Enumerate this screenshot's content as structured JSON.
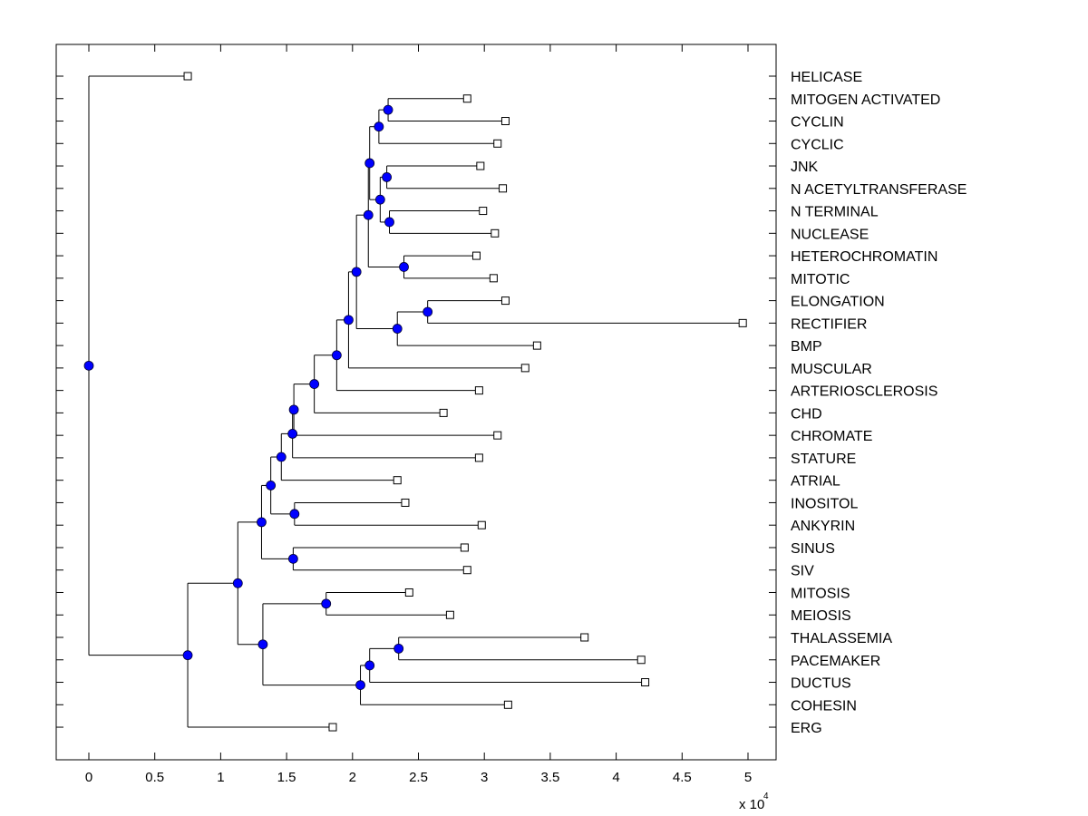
{
  "chart_data": {
    "type": "dendrogram",
    "title": "",
    "xlabel": "",
    "ylabel": "",
    "x_multiplier_label": "x 10",
    "x_multiplier_exponent": "4",
    "xlim": [
      -0.25,
      5.2
    ],
    "xticks": [
      0,
      0.5,
      1,
      1.5,
      2,
      2.5,
      3,
      3.5,
      4,
      4.5,
      5
    ],
    "xtick_labels": [
      "0",
      "0.5",
      "1",
      "1.5",
      "2",
      "2.5",
      "3",
      "3.5",
      "4",
      "4.5",
      "5"
    ],
    "grid": false,
    "label_placement": "right",
    "colors": {
      "node_fill": "#0000ff",
      "leaf_fill": "#ffffff",
      "line": "#000000"
    },
    "leaves": [
      {
        "id": "HELICASE",
        "label": "HELICASE",
        "x": 0.75
      },
      {
        "id": "MITOGEN",
        "label": "MITOGEN ACTIVATED",
        "x": 2.87
      },
      {
        "id": "CYCLIN",
        "label": "CYCLIN",
        "x": 3.16
      },
      {
        "id": "CYCLIC",
        "label": "CYCLIC",
        "x": 3.1
      },
      {
        "id": "JNK",
        "label": "JNK",
        "x": 2.97
      },
      {
        "id": "NACETYL",
        "label": "N ACETYLTRANSFERASE",
        "x": 3.14
      },
      {
        "id": "NTERM",
        "label": "N TERMINAL",
        "x": 2.99
      },
      {
        "id": "NUCLEASE",
        "label": "NUCLEASE",
        "x": 3.08
      },
      {
        "id": "HETERO",
        "label": "HETEROCHROMATIN",
        "x": 2.94
      },
      {
        "id": "MITOTIC",
        "label": "MITOTIC",
        "x": 3.07
      },
      {
        "id": "ELONG",
        "label": "ELONGATION",
        "x": 3.16
      },
      {
        "id": "RECT",
        "label": "RECTIFIER",
        "x": 4.96
      },
      {
        "id": "BMP",
        "label": "BMP",
        "x": 3.4
      },
      {
        "id": "MUSCULAR",
        "label": "MUSCULAR",
        "x": 3.31
      },
      {
        "id": "ARTERIO",
        "label": "ARTERIOSCLEROSIS",
        "x": 2.96
      },
      {
        "id": "CHD",
        "label": "CHD",
        "x": 2.69
      },
      {
        "id": "CHROMATE",
        "label": "CHROMATE",
        "x": 3.1
      },
      {
        "id": "STATURE",
        "label": "STATURE",
        "x": 2.96
      },
      {
        "id": "ATRIAL",
        "label": "ATRIAL",
        "x": 2.34
      },
      {
        "id": "INOSITOL",
        "label": "INOSITOL",
        "x": 2.4
      },
      {
        "id": "ANKYRIN",
        "label": "ANKYRIN",
        "x": 2.98
      },
      {
        "id": "SINUS",
        "label": "SINUS",
        "x": 2.85
      },
      {
        "id": "SIV",
        "label": "SIV",
        "x": 2.87
      },
      {
        "id": "MITOSIS",
        "label": "MITOSIS",
        "x": 2.43
      },
      {
        "id": "MEIOSIS",
        "label": "MEIOSIS",
        "x": 2.74
      },
      {
        "id": "THAL",
        "label": "THALASSEMIA",
        "x": 3.76
      },
      {
        "id": "PACE",
        "label": "PACEMAKER",
        "x": 4.19
      },
      {
        "id": "DUCTUS",
        "label": "DUCTUS",
        "x": 4.22
      },
      {
        "id": "COHESIN",
        "label": "COHESIN",
        "x": 3.18
      },
      {
        "id": "ERG",
        "label": "ERG",
        "x": 1.85
      }
    ],
    "nodes": [
      {
        "id": "n_mc",
        "x": 2.27,
        "children": [
          "MITOGEN",
          "CYCLIN"
        ]
      },
      {
        "id": "n_mcc",
        "x": 2.2,
        "children": [
          "n_mc",
          "CYCLIC"
        ]
      },
      {
        "id": "n_jn",
        "x": 2.26,
        "children": [
          "JNK",
          "NACETYL"
        ]
      },
      {
        "id": "n_nn",
        "x": 2.28,
        "children": [
          "NTERM",
          "NUCLEASE"
        ]
      },
      {
        "id": "n_jnnn",
        "x": 2.21,
        "children": [
          "n_jn",
          "n_nn"
        ]
      },
      {
        "id": "n_top",
        "x": 2.13,
        "children": [
          "n_mcc",
          "n_jnnn"
        ]
      },
      {
        "id": "n_hm",
        "x": 2.39,
        "children": [
          "HETERO",
          "MITOTIC"
        ]
      },
      {
        "id": "n_top2",
        "x": 2.12,
        "children": [
          "n_top",
          "n_hm"
        ]
      },
      {
        "id": "n_er",
        "x": 2.57,
        "children": [
          "ELONG",
          "RECT"
        ]
      },
      {
        "id": "n_erb",
        "x": 2.34,
        "children": [
          "n_er",
          "BMP"
        ]
      },
      {
        "id": "n_t3",
        "x": 2.03,
        "children": [
          "n_top2",
          "n_erb"
        ]
      },
      {
        "id": "n_t4",
        "x": 1.97,
        "children": [
          "n_t3",
          "MUSCULAR"
        ]
      },
      {
        "id": "n_t5",
        "x": 1.88,
        "children": [
          "n_t4",
          "ARTERIO"
        ]
      },
      {
        "id": "n_t6",
        "x": 1.71,
        "children": [
          "n_t5",
          "CHD"
        ]
      },
      {
        "id": "n_t7",
        "x": 1.555,
        "children": [
          "n_t6",
          "CHROMATE"
        ]
      },
      {
        "id": "n_t8",
        "x": 1.545,
        "children": [
          "n_t7",
          "STATURE"
        ]
      },
      {
        "id": "n_t9",
        "x": 1.46,
        "children": [
          "n_t8",
          "ATRIAL"
        ]
      },
      {
        "id": "n_ia",
        "x": 1.56,
        "children": [
          "INOSITOL",
          "ANKYRIN"
        ]
      },
      {
        "id": "n_t10",
        "x": 1.38,
        "children": [
          "n_t9",
          "n_ia"
        ]
      },
      {
        "id": "n_ss",
        "x": 1.55,
        "children": [
          "SINUS",
          "SIV"
        ]
      },
      {
        "id": "n_t11",
        "x": 1.31,
        "children": [
          "n_t10",
          "n_ss"
        ]
      },
      {
        "id": "n_mm",
        "x": 1.8,
        "children": [
          "MITOSIS",
          "MEIOSIS"
        ]
      },
      {
        "id": "n_tp",
        "x": 2.35,
        "children": [
          "THAL",
          "PACE"
        ]
      },
      {
        "id": "n_tpd",
        "x": 2.13,
        "children": [
          "n_tp",
          "DUCTUS"
        ]
      },
      {
        "id": "n_tpdc",
        "x": 2.06,
        "children": [
          "n_tpd",
          "COHESIN"
        ]
      },
      {
        "id": "n_b",
        "x": 1.32,
        "children": [
          "n_mm",
          "n_tpdc"
        ]
      },
      {
        "id": "n_t12",
        "x": 1.13,
        "children": [
          "n_t11",
          "n_b"
        ]
      },
      {
        "id": "n_t13",
        "x": 0.75,
        "children": [
          "n_t12",
          "ERG"
        ]
      },
      {
        "id": "root",
        "x": 0.0,
        "children": [
          "HELICASE",
          "n_t13"
        ]
      }
    ]
  }
}
